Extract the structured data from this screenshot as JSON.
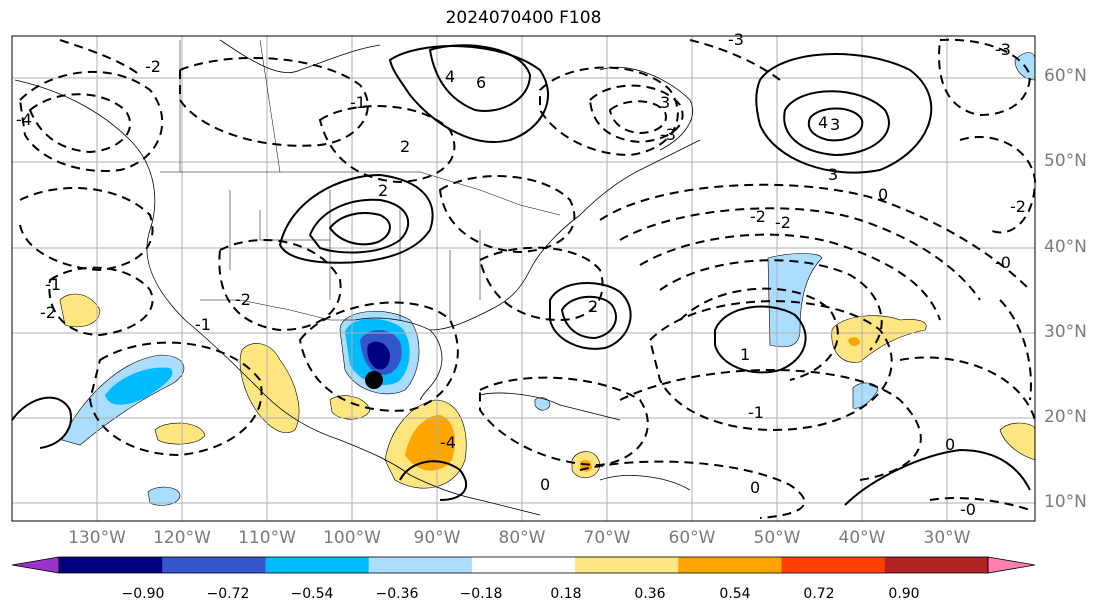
{
  "title": "2024070400 F108",
  "latitude_labels": [
    "60°N",
    "50°N",
    "40°N",
    "30°N",
    "20°N",
    "10°N"
  ],
  "longitude_labels": [
    "130°W",
    "120°W",
    "110°W",
    "100°W",
    "90°W",
    "80°W",
    "70°W",
    "60°W",
    "50°W",
    "40°W",
    "30°W"
  ],
  "colorbar": {
    "colors": [
      "#9933cc",
      "#000080",
      "#3355cc",
      "#00bbff",
      "#aaddff",
      "#ffffff",
      "#ffe680",
      "#ffa500",
      "#ff4000",
      "#b22222",
      "#ff80b0"
    ],
    "tick_labels": [
      "−0.90",
      "−0.72",
      "−0.54",
      "−0.36",
      "−0.18",
      "0.18",
      "0.36",
      "0.54",
      "0.72",
      "0.90"
    ]
  },
  "contour_labels": [
    "6",
    "4",
    "3",
    "2",
    "1",
    "0",
    "-0",
    "-2",
    "-1",
    "-1",
    "0",
    "2",
    "-1",
    "-4",
    "-3",
    "-3",
    "-2",
    "-2",
    "-2",
    "0",
    "-3",
    "-4",
    "3",
    "3",
    "-0",
    "4",
    "-2",
    "-2",
    "0",
    "-1",
    "2"
  ],
  "marker": "storm-center-dot"
}
